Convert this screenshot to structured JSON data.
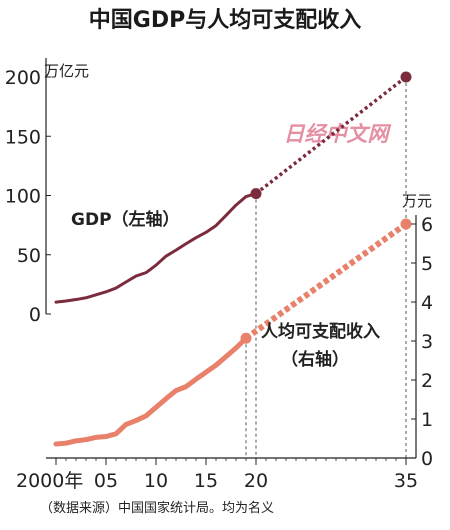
{
  "chart_data": {
    "type": "line",
    "title": "中国GDP与人均可支配收入",
    "left_axis": {
      "unit": "万亿元",
      "ticks": [
        0,
        50,
        100,
        150,
        200
      ],
      "ylim": [
        0,
        200
      ]
    },
    "right_axis": {
      "unit": "万元",
      "ticks": [
        0,
        1,
        2,
        3,
        4,
        5,
        6
      ],
      "ylim": [
        0,
        6
      ]
    },
    "x_axis": {
      "ticks": [
        {
          "value": 2000,
          "label": "2000年"
        },
        {
          "value": 2005,
          "label": "05"
        },
        {
          "value": 2010,
          "label": "10"
        },
        {
          "value": 2015,
          "label": "15"
        },
        {
          "value": 2020,
          "label": "20"
        },
        {
          "value": 2035,
          "label": "35"
        }
      ],
      "xlim": [
        1999,
        2036
      ]
    },
    "series": [
      {
        "name": "GDP（左轴）",
        "axis": "left",
        "color": "#7b2c3c",
        "actual": [
          {
            "x": 2000,
            "y": 10.0
          },
          {
            "x": 2001,
            "y": 11.0
          },
          {
            "x": 2002,
            "y": 12.2
          },
          {
            "x": 2003,
            "y": 13.7
          },
          {
            "x": 2004,
            "y": 16.2
          },
          {
            "x": 2005,
            "y": 18.7
          },
          {
            "x": 2006,
            "y": 21.9
          },
          {
            "x": 2007,
            "y": 27.0
          },
          {
            "x": 2008,
            "y": 32.0
          },
          {
            "x": 2009,
            "y": 34.9
          },
          {
            "x": 2010,
            "y": 41.2
          },
          {
            "x": 2011,
            "y": 48.8
          },
          {
            "x": 2012,
            "y": 53.9
          },
          {
            "x": 2013,
            "y": 59.3
          },
          {
            "x": 2014,
            "y": 64.4
          },
          {
            "x": 2015,
            "y": 68.9
          },
          {
            "x": 2016,
            "y": 74.6
          },
          {
            "x": 2017,
            "y": 83.2
          },
          {
            "x": 2018,
            "y": 91.9
          },
          {
            "x": 2019,
            "y": 99.1
          }
        ],
        "marker_actual": {
          "x": 2020,
          "y": 101.6
        },
        "projection": [
          {
            "x": 2020,
            "y": 101.6
          },
          {
            "x": 2035,
            "y": 200
          }
        ],
        "label_position": {
          "x": 2001.5,
          "y": 75
        }
      },
      {
        "name": "人均可支配收入",
        "name_suffix": "（右轴）",
        "axis": "right",
        "color": "#e8806a",
        "actual": [
          {
            "x": 2000,
            "y": 0.36
          },
          {
            "x": 2001,
            "y": 0.38
          },
          {
            "x": 2002,
            "y": 0.44
          },
          {
            "x": 2003,
            "y": 0.47
          },
          {
            "x": 2004,
            "y": 0.53
          },
          {
            "x": 2005,
            "y": 0.55
          },
          {
            "x": 2006,
            "y": 0.62
          },
          {
            "x": 2007,
            "y": 0.86
          },
          {
            "x": 2008,
            "y": 0.96
          },
          {
            "x": 2009,
            "y": 1.08
          },
          {
            "x": 2010,
            "y": 1.3
          },
          {
            "x": 2011,
            "y": 1.52
          },
          {
            "x": 2012,
            "y": 1.73
          },
          {
            "x": 2013,
            "y": 1.83
          },
          {
            "x": 2014,
            "y": 2.02
          },
          {
            "x": 2015,
            "y": 2.2
          },
          {
            "x": 2016,
            "y": 2.38
          },
          {
            "x": 2017,
            "y": 2.6
          },
          {
            "x": 2018,
            "y": 2.82
          },
          {
            "x": 2019,
            "y": 3.07
          }
        ],
        "marker_actual": {
          "x": 2019,
          "y": 3.07
        },
        "projection": [
          {
            "x": 2019,
            "y": 3.07
          },
          {
            "x": 2035,
            "y": 6.0
          }
        ],
        "label_position": {
          "x": 2020.5,
          "y": 3.1
        }
      }
    ],
    "reference_lines": [
      2019,
      2020,
      2035
    ],
    "grid": false
  },
  "watermark": "日经中文网",
  "source": "（数据来源）中国国家统计局。均为名义"
}
